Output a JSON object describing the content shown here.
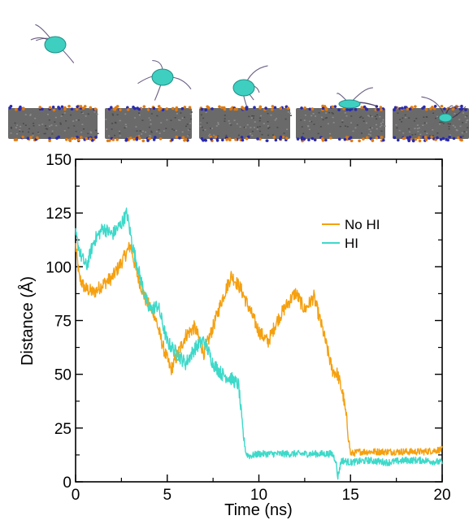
{
  "chart_data": {
    "type": "line",
    "xlabel": "Time (ns)",
    "ylabel": "Distance (Å)",
    "xlim": [
      0,
      20
    ],
    "ylim": [
      0,
      150
    ],
    "xticks": [
      0,
      5,
      10,
      15,
      20
    ],
    "yticks": [
      0,
      25,
      50,
      75,
      100,
      125,
      150
    ],
    "grid": false,
    "legend_position": "top-right",
    "series": [
      {
        "name": "No HI",
        "color": "#f5a00f",
        "x": [
          0,
          0.2,
          0.5,
          1.0,
          1.5,
          2.0,
          2.5,
          3.0,
          3.3,
          3.8,
          4.3,
          4.8,
          5.2,
          5.6,
          6.0,
          6.5,
          7.0,
          7.5,
          8.0,
          8.5,
          9.0,
          9.5,
          10.0,
          10.5,
          11.0,
          11.5,
          12.0,
          12.5,
          13.0,
          13.5,
          14.0,
          14.3,
          14.6,
          14.8,
          15.0,
          15.5,
          16.0,
          17.0,
          18.0,
          19.0,
          20.0
        ],
        "values": [
          110,
          95,
          90,
          88,
          92,
          95,
          102,
          110,
          98,
          85,
          78,
          62,
          52,
          60,
          68,
          72,
          60,
          72,
          85,
          96,
          90,
          80,
          70,
          65,
          75,
          82,
          88,
          80,
          86,
          70,
          52,
          50,
          40,
          28,
          13,
          14,
          14,
          14,
          14,
          14,
          15
        ]
      },
      {
        "name": "HI",
        "color": "#3dd9c9",
        "x": [
          0,
          0.3,
          0.6,
          1.0,
          1.5,
          2.0,
          2.5,
          2.8,
          3.1,
          3.5,
          4.0,
          4.5,
          5.0,
          5.5,
          6.0,
          6.5,
          7.0,
          7.5,
          8.0,
          8.5,
          8.9,
          9.1,
          9.3,
          9.5,
          10.0,
          11.0,
          12.0,
          13.0,
          14.0,
          14.2,
          14.3,
          14.5,
          15.0,
          16.0,
          17.0,
          18.0,
          19.0,
          20.0
        ],
        "values": [
          115,
          105,
          100,
          112,
          118,
          115,
          120,
          125,
          110,
          96,
          80,
          82,
          65,
          60,
          55,
          62,
          66,
          55,
          50,
          48,
          45,
          25,
          13,
          12,
          13,
          13,
          13,
          13,
          13,
          10,
          2,
          10,
          9,
          10,
          9,
          10,
          10,
          9
        ]
      }
    ]
  },
  "snapshots": {
    "count": 5,
    "membrane_color": "#6a6a6a",
    "bead_colors": [
      "#e07a10",
      "#2a2ab0"
    ],
    "protein_color": "#3ecfc0",
    "tail_color": "#3a2a5a"
  }
}
